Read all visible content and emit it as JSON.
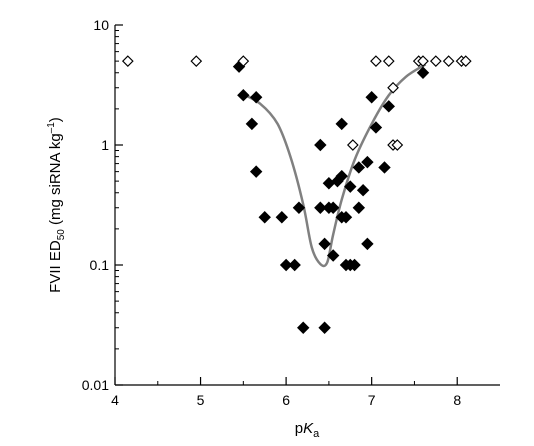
{
  "chart_data": {
    "type": "scatter",
    "xlabel_parts": [
      "p",
      "K",
      "a"
    ],
    "ylabel_parts": [
      "FVII ED",
      "50",
      " (mg siRNA kg",
      "–1",
      ")"
    ],
    "xlim": [
      4,
      8.5
    ],
    "ylim": [
      0.01,
      10
    ],
    "y_scale": "log",
    "x_ticks": [
      "4",
      "5",
      "6",
      "7",
      "8"
    ],
    "y_ticks": [
      "0.01",
      "0.1",
      "1",
      "10"
    ],
    "grid": false,
    "legend": "none",
    "colors": {
      "filled": "#000000",
      "open": "#000000",
      "curve": "#808080"
    },
    "series": [
      {
        "marker": "filled-diamond",
        "points": [
          [
            5.45,
            4.5
          ],
          [
            5.5,
            2.6
          ],
          [
            5.6,
            1.5
          ],
          [
            5.65,
            2.5
          ],
          [
            5.65,
            0.6
          ],
          [
            5.75,
            0.25
          ],
          [
            5.95,
            0.25
          ],
          [
            6.0,
            0.1
          ],
          [
            6.1,
            0.1
          ],
          [
            6.15,
            0.3
          ],
          [
            6.2,
            0.03
          ],
          [
            6.4,
            1.0
          ],
          [
            6.4,
            0.3
          ],
          [
            6.45,
            0.15
          ],
          [
            6.45,
            0.03
          ],
          [
            6.5,
            0.48
          ],
          [
            6.5,
            0.3
          ],
          [
            6.55,
            0.12
          ],
          [
            6.55,
            0.3
          ],
          [
            6.6,
            0.5
          ],
          [
            6.65,
            0.55
          ],
          [
            6.65,
            0.25
          ],
          [
            6.65,
            1.5
          ],
          [
            6.7,
            0.1
          ],
          [
            6.7,
            0.25
          ],
          [
            6.75,
            0.1
          ],
          [
            6.75,
            0.45
          ],
          [
            6.8,
            0.1
          ],
          [
            6.85,
            0.3
          ],
          [
            6.85,
            0.65
          ],
          [
            6.9,
            0.42
          ],
          [
            6.95,
            0.15
          ],
          [
            6.95,
            0.72
          ],
          [
            7.0,
            2.5
          ],
          [
            7.05,
            1.4
          ],
          [
            7.15,
            0.65
          ],
          [
            7.2,
            2.1
          ],
          [
            7.6,
            4.0
          ]
        ]
      },
      {
        "marker": "open-diamond",
        "points": [
          [
            4.15,
            5
          ],
          [
            4.95,
            5
          ],
          [
            5.5,
            5
          ],
          [
            6.78,
            1.0
          ],
          [
            7.05,
            5
          ],
          [
            7.2,
            5
          ],
          [
            7.25,
            3.0
          ],
          [
            7.25,
            1.0
          ],
          [
            7.3,
            1.0
          ],
          [
            7.55,
            5
          ],
          [
            7.6,
            5
          ],
          [
            7.75,
            5
          ],
          [
            7.9,
            5
          ],
          [
            8.05,
            5
          ],
          [
            8.1,
            5
          ]
        ]
      }
    ],
    "curve": [
      [
        5.47,
        2.7
      ],
      [
        5.7,
        2.2
      ],
      [
        5.9,
        1.5
      ],
      [
        6.05,
        0.8
      ],
      [
        6.2,
        0.32
      ],
      [
        6.3,
        0.14
      ],
      [
        6.4,
        0.102
      ],
      [
        6.48,
        0.105
      ],
      [
        6.55,
        0.18
      ],
      [
        6.65,
        0.35
      ],
      [
        6.8,
        0.75
      ],
      [
        7.0,
        1.5
      ],
      [
        7.2,
        2.6
      ],
      [
        7.4,
        3.7
      ],
      [
        7.63,
        4.7
      ]
    ]
  }
}
